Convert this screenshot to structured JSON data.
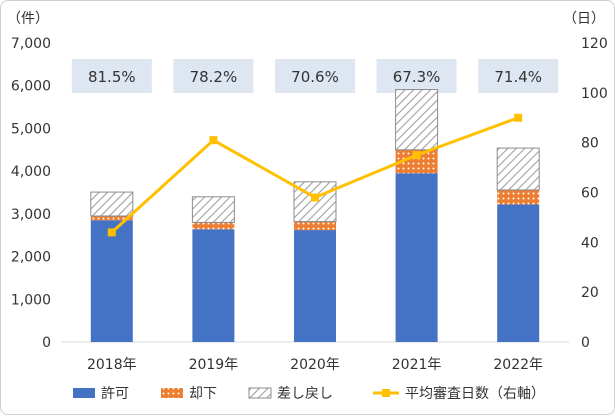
{
  "chart_data": {
    "type": "bar",
    "stacked": true,
    "categories": [
      "2018年",
      "2019年",
      "2020年",
      "2021年",
      "2022年"
    ],
    "series": [
      {
        "name": "許可",
        "axis": "left",
        "color": "#4472C4",
        "values": [
          2850,
          2640,
          2620,
          3950,
          3220
        ]
      },
      {
        "name": "却下",
        "axis": "left",
        "color": "#ED7D31",
        "pattern": "dots",
        "values": [
          100,
          160,
          200,
          550,
          340
        ]
      },
      {
        "name": "差し戻し",
        "axis": "left",
        "color": "#A5A5A5",
        "pattern": "hatch",
        "values": [
          560,
          600,
          930,
          1410,
          980
        ]
      },
      {
        "name": "平均審査日数（右軸）",
        "axis": "right",
        "type": "line",
        "color": "#FFC000",
        "values": [
          44,
          81,
          58,
          75,
          90
        ]
      }
    ],
    "rate_labels": [
      "81.5%",
      "78.2%",
      "70.6%",
      "67.3%",
      "71.4%"
    ],
    "y_left": {
      "unit": "（件）",
      "range": [
        0,
        7000
      ],
      "ticks": [
        "0",
        "1,000",
        "2,000",
        "3,000",
        "4,000",
        "5,000",
        "6,000",
        "7,000"
      ]
    },
    "y_right": {
      "unit": "（日）",
      "range": [
        0,
        120
      ],
      "ticks": [
        "0",
        "20",
        "40",
        "60",
        "80",
        "100",
        "120"
      ]
    },
    "grid": false,
    "legend_position": "bottom"
  }
}
